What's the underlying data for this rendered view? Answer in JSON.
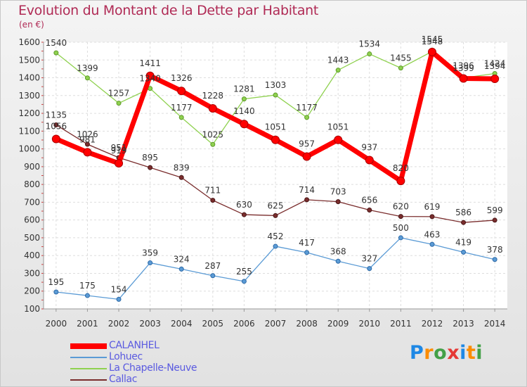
{
  "chart_data": {
    "type": "line",
    "title": "Evolution du Montant de la Dette par Habitant",
    "subtitle": "(en €)",
    "x": [
      "2000",
      "2001",
      "2002",
      "2003",
      "2004",
      "2005",
      "2006",
      "2007",
      "2008",
      "2009",
      "2010",
      "2011",
      "2012",
      "2013",
      "2014"
    ],
    "ylim": [
      100,
      1600
    ],
    "yticks": [
      100,
      200,
      300,
      400,
      500,
      600,
      700,
      800,
      900,
      1000,
      1100,
      1200,
      1300,
      1400,
      1500,
      1600
    ],
    "grid": true,
    "legend_position": "bottom-left",
    "series": [
      {
        "name": "CALANHEL",
        "color": "#ff0000",
        "values": [
          1056,
          981,
          919,
          1411,
          1326,
          1228,
          1140,
          1051,
          957,
          1051,
          937,
          820,
          1545,
          1396,
          1394
        ]
      },
      {
        "name": "Lohuec",
        "color": "#5b9bd5",
        "values": [
          195,
          175,
          154,
          359,
          324,
          287,
          255,
          452,
          417,
          368,
          327,
          500,
          463,
          419,
          378
        ]
      },
      {
        "name": "La Chapelle-Neuve",
        "color": "#8fd14f",
        "values": [
          1540,
          1399,
          1257,
          1340,
          1177,
          1025,
          1281,
          1303,
          1177,
          1443,
          1534,
          1455,
          1548,
          1399,
          1424
        ]
      },
      {
        "name": "Callac",
        "color": "#7a2d2d",
        "values": [
          1135,
          1026,
          951,
          895,
          839,
          711,
          630,
          625,
          714,
          703,
          656,
          620,
          619,
          586,
          599
        ]
      }
    ]
  },
  "logo": {
    "letters": [
      "P",
      "r",
      "o",
      "x",
      "i",
      "t",
      "i"
    ],
    "colors": [
      "#1e88e5",
      "#fb8c00",
      "#43a047",
      "#e53935",
      "#1e88e5",
      "#fb8c00",
      "#43a047"
    ]
  }
}
